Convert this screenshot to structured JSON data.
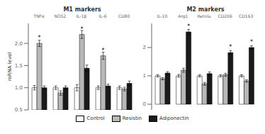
{
  "chart_data": [
    {
      "type": "bar",
      "title": "M1 markers",
      "ylabel": "mRNA level",
      "categories": [
        "TNFα",
        "NOS2",
        "IL-1β",
        "IL-6",
        "CD80"
      ],
      "series": [
        {
          "name": "Control",
          "color": "#ffffff",
          "values": [
            1.0,
            1.0,
            1.0,
            1.0,
            1.0
          ],
          "errors": [
            0.05,
            0.04,
            0.07,
            0.04,
            0.04
          ]
        },
        {
          "name": "Resistin",
          "color": "#b8b8b8",
          "values": [
            2.0,
            0.88,
            2.2,
            1.72,
            0.97
          ],
          "errors": [
            0.07,
            0.05,
            0.09,
            0.08,
            0.04
          ],
          "annotations": [
            "*",
            null,
            "*",
            "*",
            null
          ]
        },
        {
          "name": "Adiponectin",
          "color": "#1a1a1a",
          "values": [
            1.0,
            1.0,
            1.44,
            1.04,
            1.1
          ],
          "errors": [
            0.04,
            0.04,
            0.07,
            0.04,
            0.05
          ]
        }
      ],
      "ylim": [
        0.5,
        2.45
      ],
      "yticks": [
        0.5,
        {
          "value": 1.0,
          "label": "1.0"
        },
        1.5,
        {
          "value": 2.0,
          "label": "2.0"
        }
      ],
      "grid": false,
      "legend": "bottom"
    },
    {
      "type": "bar",
      "title": "M2 markers",
      "categories": [
        "IL-10",
        "Arg1",
        "Retnla",
        "CD206",
        "CD163"
      ],
      "series": [
        {
          "name": "Control",
          "color": "#ffffff",
          "values": [
            1.0,
            1.0,
            1.0,
            1.0,
            1.0
          ],
          "errors": [
            0.04,
            0.05,
            0.04,
            0.04,
            0.04
          ]
        },
        {
          "name": "Resistin",
          "color": "#b8b8b8",
          "values": [
            0.9,
            1.2,
            0.72,
            1.04,
            0.82
          ],
          "errors": [
            0.04,
            0.07,
            0.05,
            0.05,
            0.04
          ]
        },
        {
          "name": "Adiponectin",
          "color": "#1a1a1a",
          "values": [
            1.1,
            2.55,
            1.08,
            1.82,
            2.0
          ],
          "errors": [
            0.05,
            0.09,
            0.06,
            0.07,
            0.06
          ],
          "annotations": [
            null,
            "*",
            null,
            "*",
            "*"
          ]
        }
      ],
      "ylim": [
        -0.2,
        2.85
      ],
      "yticks": [
        0,
        1,
        2
      ],
      "grid": false,
      "legend": "bottom"
    }
  ]
}
